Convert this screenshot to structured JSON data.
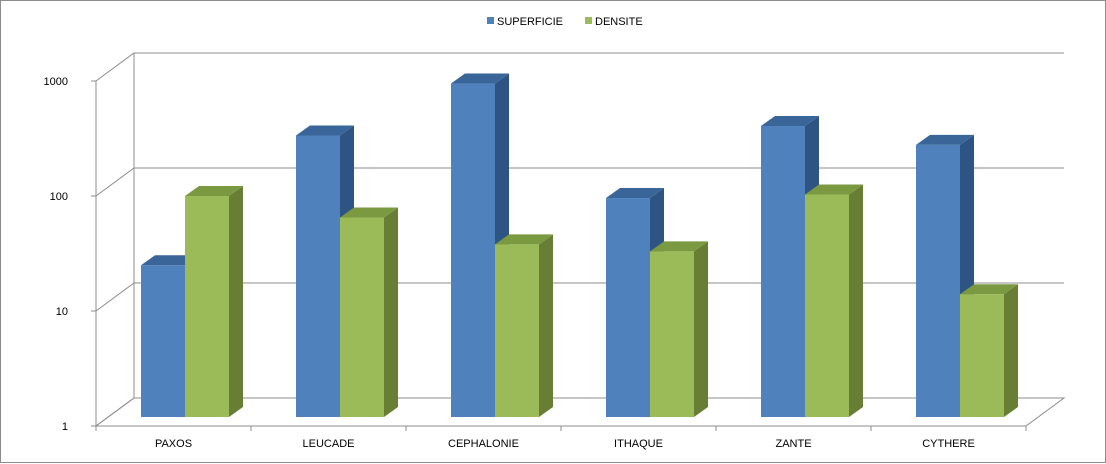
{
  "chart_data": {
    "type": "bar",
    "title": "",
    "xlabel": "",
    "ylabel": "",
    "y_scale": "log",
    "ylim": [
      1,
      1000
    ],
    "yticks": [
      "1",
      "10",
      "100",
      "1000"
    ],
    "grid": true,
    "legend_position": "top",
    "categories": [
      "PAXOS",
      "LEUCADE",
      "CEPHALONIE",
      "ITHAQUE",
      "ZANTE",
      "CYTHERE"
    ],
    "series": [
      {
        "name": "SUPERFICIE",
        "color": "#4F81BD",
        "side_color": "#2E5483",
        "top_color": "#3A6599",
        "values": [
          25,
          336,
          950,
          96,
          406,
          278
        ]
      },
      {
        "name": "DENSITE",
        "color": "#9BBB59",
        "side_color": "#677E34",
        "top_color": "#7A9940",
        "values": [
          100,
          65,
          38,
          33,
          103,
          14
        ]
      }
    ]
  }
}
